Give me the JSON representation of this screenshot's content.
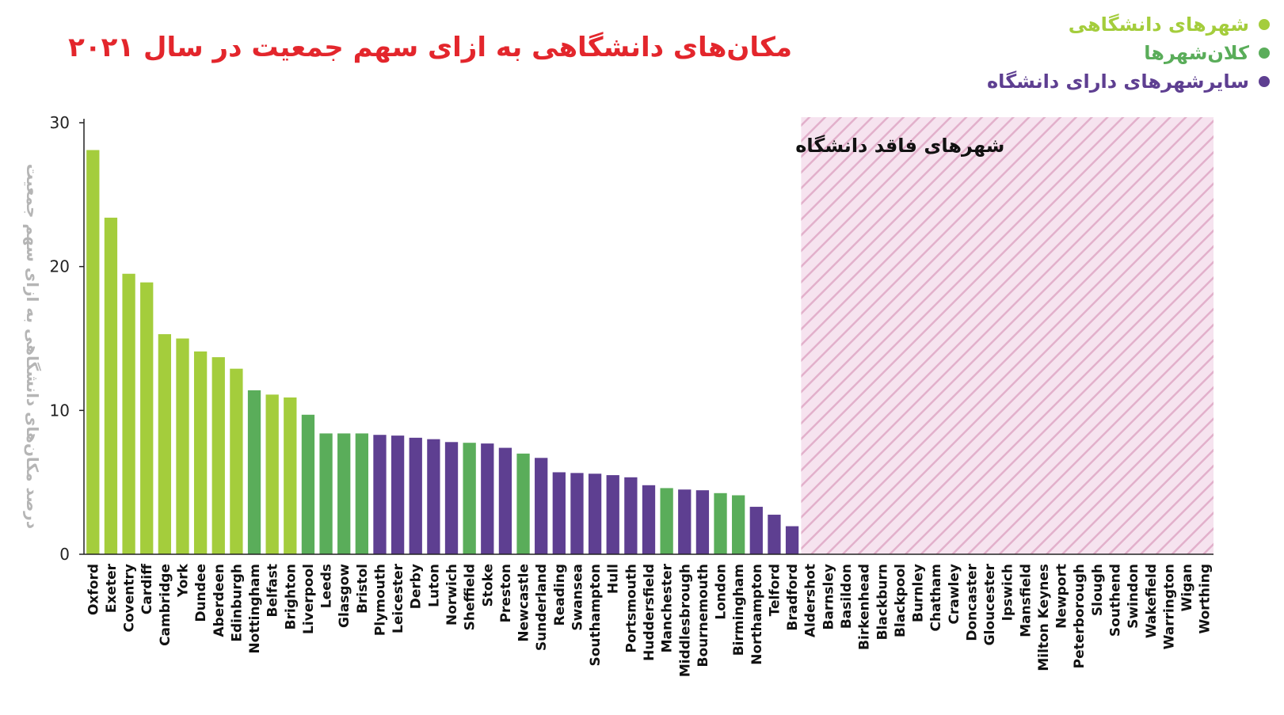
{
  "title": "مکان‌های دانشگاهی به ازای سهم جمعیت در سال ۲۰۲۱",
  "legend": [
    {
      "label": "شهرهای دانشگاهی",
      "color": "#a4cd3c"
    },
    {
      "label": "کلان‌شهرها",
      "color": "#5aad5a"
    },
    {
      "label": "سایرشهرهای دارای دانشگاه",
      "color": "#5e3f91"
    }
  ],
  "chart_data": {
    "type": "bar",
    "ylabel": "درصد مکان‌های دانشگاهی به ازای سهم جمعیت",
    "ylim": [
      0,
      30
    ],
    "yticks": [
      0,
      10,
      20,
      30
    ],
    "region_label": "شهرهای فاقد دانشگاه",
    "categories": [
      "Oxford",
      "Exeter",
      "Coventry",
      "Cardiff",
      "Cambridge",
      "York",
      "Dundee",
      "Aberdeen",
      "Edinburgh",
      "Nottingham",
      "Belfast",
      "Brighton",
      "Liverpool",
      "Leeds",
      "Glasgow",
      "Bristol",
      "Plymouth",
      "Leicester",
      "Derby",
      "Luton",
      "Norwich",
      "Sheffield",
      "Stoke",
      "Preston",
      "Newcastle",
      "Sunderland",
      "Reading",
      "Swansea",
      "Southampton",
      "Hull",
      "Portsmouth",
      "Huddersfield",
      "Manchester",
      "Middlesbrough",
      "Bournemouth",
      "London",
      "Birmingham",
      "Northampton",
      "Telford",
      "Bradford",
      "Aldershot",
      "Barnsley",
      "Basildon",
      "Birkenhead",
      "Blackburn",
      "Blackpool",
      "Burnley",
      "Chatham",
      "Crawley",
      "Doncaster",
      "Gloucester",
      "Ipswich",
      "Mansfield",
      "Milton Keynes",
      "Newport",
      "Peterborough",
      "Slough",
      "Southend",
      "Swindon",
      "Wakefield",
      "Warrington",
      "Wigan",
      "Worthing"
    ],
    "values": [
      28.1,
      23.4,
      19.5,
      18.9,
      15.3,
      15.0,
      14.1,
      13.7,
      12.9,
      11.4,
      11.1,
      10.9,
      9.7,
      8.4,
      8.4,
      8.4,
      8.3,
      8.25,
      8.1,
      8.0,
      7.8,
      7.75,
      7.7,
      7.4,
      7.0,
      6.7,
      5.7,
      5.65,
      5.6,
      5.5,
      5.35,
      4.8,
      4.6,
      4.5,
      4.45,
      4.25,
      4.1,
      3.3,
      2.75,
      1.95,
      0,
      0,
      0,
      0,
      0,
      0,
      0,
      0,
      0,
      0,
      0,
      0,
      0,
      0,
      0,
      0,
      0,
      0,
      0,
      0,
      0,
      0,
      0
    ],
    "groups": [
      0,
      0,
      0,
      0,
      0,
      0,
      0,
      0,
      0,
      1,
      0,
      0,
      1,
      1,
      1,
      1,
      2,
      2,
      2,
      2,
      2,
      1,
      2,
      2,
      1,
      2,
      2,
      2,
      2,
      2,
      2,
      2,
      1,
      2,
      2,
      1,
      1,
      2,
      2,
      2,
      3,
      3,
      3,
      3,
      3,
      3,
      3,
      3,
      3,
      3,
      3,
      3,
      3,
      3,
      3,
      3,
      3,
      3,
      3,
      3,
      3,
      3,
      3
    ]
  }
}
